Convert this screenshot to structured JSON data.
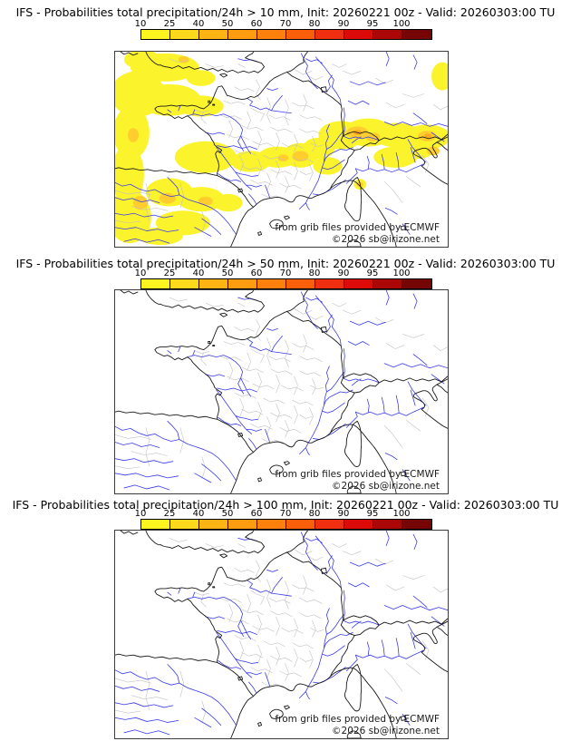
{
  "page": {
    "background": "#ffffff"
  },
  "colorbar": {
    "tick_labels": [
      "10",
      "25",
      "40",
      "50",
      "60",
      "70",
      "80",
      "90",
      "95",
      "100"
    ],
    "segment_colors": [
      "#fdf420",
      "#ffd91c",
      "#ffb414",
      "#ff9c10",
      "#ff800c",
      "#fc5f0a",
      "#f02f10",
      "#dd0a0a",
      "#ab0707",
      "#760505"
    ]
  },
  "map_attribution": {
    "line1": "from grib files provided by ECMWF",
    "line2": "©2026 sb@irizone.net"
  },
  "map_colors": {
    "coastline": "#1a1a1a",
    "admin_boundary": "#c2c2c2",
    "river": "#3c3cee",
    "frame": "#3c3c3c",
    "overlay_low": "#fbf32b",
    "overlay_mid": "#ffcd2e",
    "overlay_high": "#ffa91f"
  },
  "panels": [
    {
      "id": "panel-10mm",
      "threshold_mm": 10,
      "title": "IFS - Probabilities total precipitation/24h > 10 mm, Init: 20260221 00z - Valid: 20260303:00 TU",
      "has_overlay": true
    },
    {
      "id": "panel-50mm",
      "threshold_mm": 50,
      "title": "IFS - Probabilities total precipitation/24h > 50 mm, Init: 20260221 00z - Valid: 20260303:00 TU",
      "has_overlay": false
    },
    {
      "id": "panel-100mm",
      "threshold_mm": 100,
      "title": "IFS - Probabilities total precipitation/24h > 100 mm, Init: 20260221 00z - Valid: 20260303:00 TU",
      "has_overlay": false
    }
  ]
}
